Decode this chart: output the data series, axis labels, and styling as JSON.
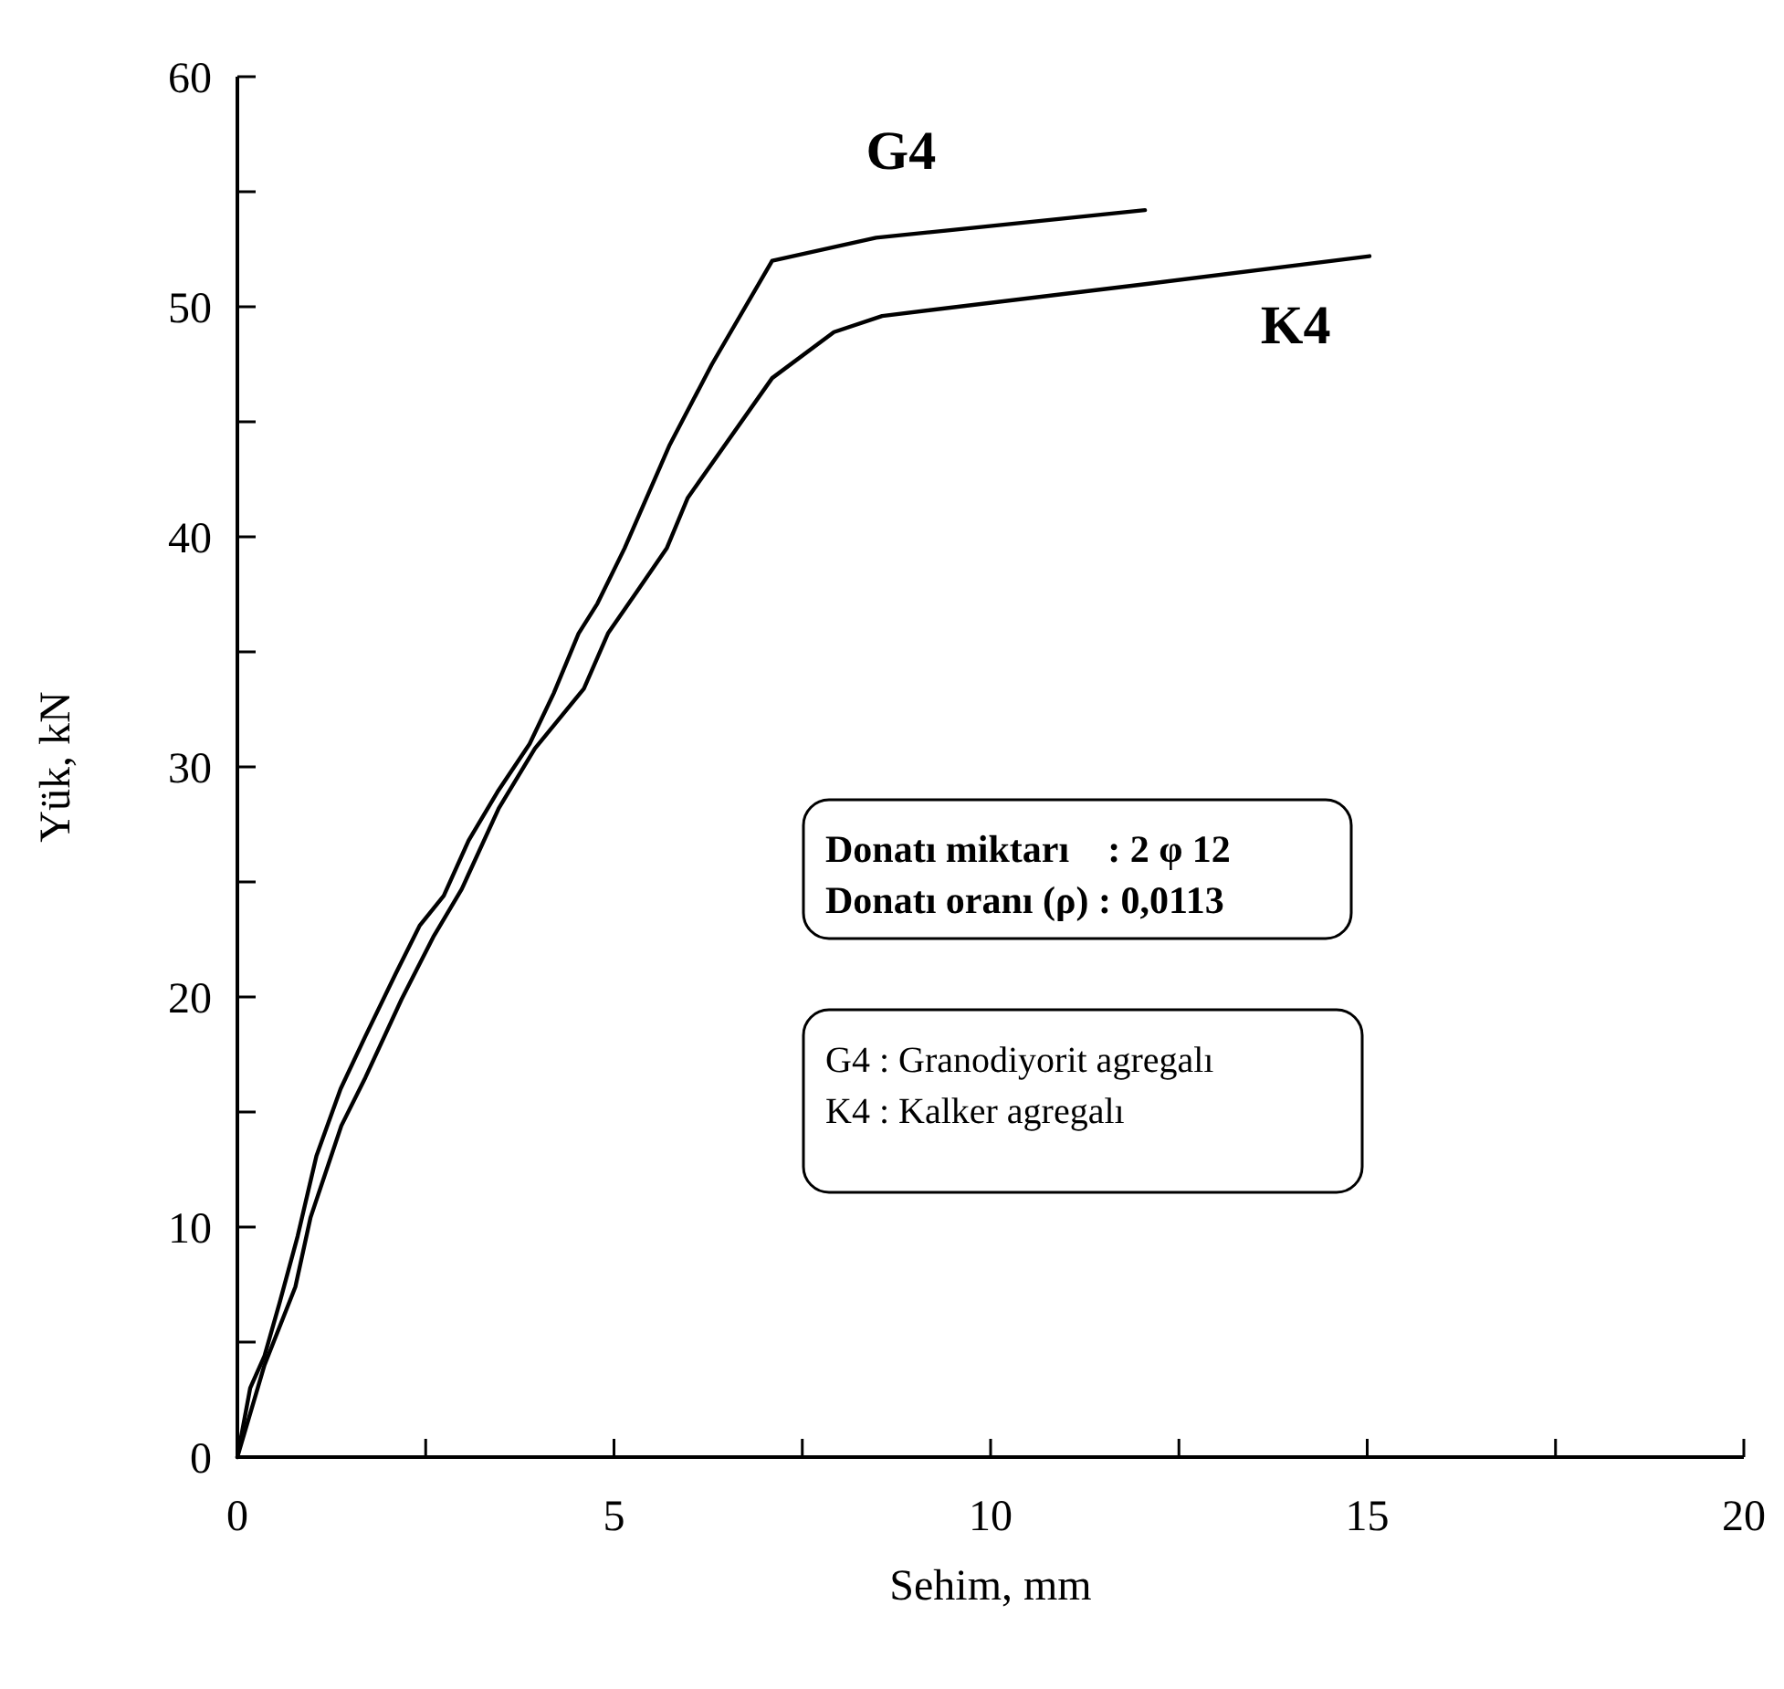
{
  "chart_data": {
    "type": "line",
    "xlabel": "Sehim, mm",
    "ylabel": "Yük, kN",
    "xlim": [
      0,
      20
    ],
    "ylim": [
      0,
      60
    ],
    "xticks": [
      0,
      {
        "value": 2.5,
        "label": null
      },
      5,
      {
        "value": 7.5,
        "label": null
      },
      10,
      {
        "value": 12.5,
        "label": null
      },
      15,
      {
        "value": 17.5,
        "label": null
      },
      20
    ],
    "yticks": [
      0,
      {
        "value": 5,
        "label": null
      },
      10,
      {
        "value": 15,
        "label": null
      },
      20,
      {
        "value": 25,
        "label": null
      },
      30,
      {
        "value": 35,
        "label": null
      },
      40,
      {
        "value": 45,
        "label": null
      },
      50,
      {
        "value": 55,
        "label": null
      },
      60
    ],
    "grid": false,
    "marker": "none",
    "line_style": "solid",
    "series": [
      {
        "name": "G4",
        "color": "#000000",
        "x": [
          0,
          0.17,
          0.36,
          0.56,
          0.8,
          1.05,
          1.37,
          1.7,
          2.1,
          2.42,
          2.74,
          3.07,
          3.47,
          3.88,
          4.2,
          4.53,
          4.78,
          5.14,
          5.74,
          6.3,
          7.1,
          8.48,
          12.05
        ],
        "values": [
          0,
          3,
          4.4,
          6.7,
          9.6,
          13.1,
          16,
          18.3,
          21,
          23.1,
          24.4,
          26.8,
          29,
          31,
          33.2,
          35.8,
          37.1,
          39.5,
          44,
          47.5,
          52,
          53,
          54.2
        ]
      },
      {
        "name": "K4",
        "color": "#000000",
        "x": [
          0,
          0.36,
          0.77,
          0.97,
          1.38,
          1.7,
          2.18,
          2.6,
          2.98,
          3.47,
          3.95,
          4.6,
          4.92,
          5.3,
          5.7,
          5.98,
          7.1,
          7.92,
          8.56,
          12.1,
          15.03
        ],
        "values": [
          0,
          4,
          7.4,
          10.4,
          14.4,
          16.5,
          19.9,
          22.6,
          24.7,
          28.2,
          30.8,
          33.4,
          35.8,
          37.6,
          39.5,
          41.7,
          46.9,
          48.9,
          49.6,
          51,
          52.2
        ]
      }
    ],
    "annotations": [
      "Donatı miktarı    : 2 φ 12",
      "Donatı oranı (ρ) : 0,0113",
      "G4 : Granodiyorit agregalı",
      "K4 : Kalker agregalı"
    ]
  }
}
